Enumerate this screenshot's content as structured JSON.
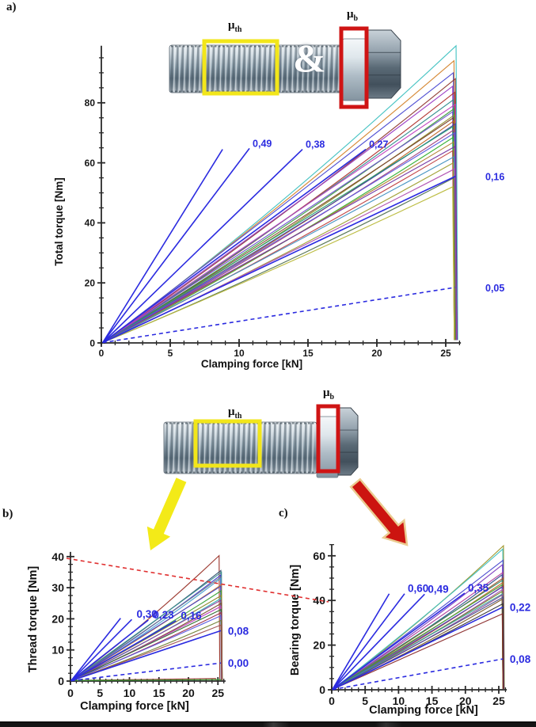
{
  "panel_labels": {
    "a": "a)",
    "b": "b)",
    "c": "c)"
  },
  "bolt_annotations": {
    "mu_symbol": "μ",
    "thread_subscript": "th",
    "bearing_subscript": "b",
    "ampersand": "&",
    "thread_box_color": "#f2e61a",
    "bearing_box_color": "#cf1414"
  },
  "annotations": {
    "dashed_line_color": "#e03030",
    "yellow_arrow_color": "#f3ea18",
    "red_arrow_color": "#cc1410",
    "red_arrow_outline": "#eacb90",
    "reference_line_color": "#2b2be0"
  },
  "chart_data": [
    {
      "id": "a",
      "type": "line",
      "xlabel": "Clamping force [kN]",
      "ylabel": "Total torque [Nm]",
      "xlim": [
        0,
        26
      ],
      "ylim": [
        0,
        99
      ],
      "xticks": [
        0,
        5,
        10,
        15,
        20,
        25
      ],
      "yticks": [
        0,
        20,
        40,
        60,
        80
      ],
      "x_minor_step": 1,
      "y_minor_step": 5,
      "grid": false,
      "legend": false,
      "reference_lines": [
        {
          "mu_label": "",
          "end": [
            8.8,
            64.5
          ],
          "dashed": false
        },
        {
          "mu_label": "0,49",
          "end": [
            10.75,
            64.8
          ],
          "dashed": false
        },
        {
          "mu_label": "0,38",
          "end": [
            14.6,
            64.5
          ],
          "dashed": false
        },
        {
          "mu_label": "0,27",
          "end": [
            19.2,
            64.5
          ],
          "dashed": false
        },
        {
          "mu_label": "0,16",
          "end": [
            25.7,
            55.5
          ],
          "dashed": false
        },
        {
          "mu_label": "0,05",
          "end": [
            25.7,
            18.5
          ],
          "dashed": true
        }
      ],
      "curves": [
        {
          "color": "#3fc1c1",
          "peak": 99,
          "x_end": 25.75,
          "drop_to": 1
        },
        {
          "color": "#d4842c",
          "peak": 94,
          "x_end": 25.6,
          "drop_to": 1
        },
        {
          "color": "#4a4ad2",
          "peak": 90,
          "x_end": 25.55,
          "drop_to": 1
        },
        {
          "color": "#8f3a30",
          "peak": 88,
          "x_end": 25.7,
          "drop_to": 1
        },
        {
          "color": "#9a3bc4",
          "peak": 85.5,
          "x_end": 25.5,
          "drop_to": 1
        },
        {
          "color": "#b1332e",
          "peak": 83.5,
          "x_end": 25.65,
          "drop_to": 1
        },
        {
          "color": "#2e8b8b",
          "peak": 81,
          "x_end": 25.55,
          "drop_to": 1
        },
        {
          "color": "#bf3fbf",
          "peak": 79.5,
          "x_end": 25.7,
          "drop_to": 1
        },
        {
          "color": "#3a9e3a",
          "peak": 78,
          "x_end": 25.6,
          "drop_to": 1
        },
        {
          "color": "#6a4fd0",
          "peak": 77,
          "x_end": 25.5,
          "drop_to": 1
        },
        {
          "color": "#8a8a28",
          "peak": 76,
          "x_end": 25.65,
          "drop_to": 1
        },
        {
          "color": "#7a4028",
          "peak": 75,
          "x_end": 25.55,
          "drop_to": 1
        },
        {
          "color": "#c06020",
          "peak": 74,
          "x_end": 25.6,
          "drop_to": 1
        },
        {
          "color": "#4040a0",
          "peak": 73,
          "x_end": 25.7,
          "drop_to": 1
        },
        {
          "color": "#20a070",
          "peak": 72,
          "x_end": 25.5,
          "drop_to": 1
        },
        {
          "color": "#a04080",
          "peak": 71,
          "x_end": 25.6,
          "drop_to": 1
        },
        {
          "color": "#5858e0",
          "peak": 70,
          "x_end": 25.65,
          "drop_to": 1
        },
        {
          "color": "#30b030",
          "peak": 68.5,
          "x_end": 25.55,
          "drop_to": 1
        },
        {
          "color": "#b08030",
          "peak": 67,
          "x_end": 25.6,
          "drop_to": 1
        },
        {
          "color": "#7030a0",
          "peak": 65.5,
          "x_end": 25.7,
          "drop_to": 1
        },
        {
          "color": "#c04040",
          "peak": 64,
          "x_end": 25.5,
          "drop_to": 1
        },
        {
          "color": "#4090c0",
          "peak": 62,
          "x_end": 25.6,
          "drop_to": 1
        },
        {
          "color": "#9f9f30",
          "peak": 60,
          "x_end": 25.55,
          "drop_to": 1
        },
        {
          "color": "#b050b0",
          "peak": 58,
          "x_end": 25.65,
          "drop_to": 1
        },
        {
          "color": "#507050",
          "peak": 55,
          "x_end": 25.6,
          "drop_to": 1
        },
        {
          "color": "#b9b93a",
          "peak": 52,
          "x_end": 25.5,
          "drop_to": 1
        }
      ]
    },
    {
      "id": "b",
      "type": "line",
      "xlabel": "Clamping force [kN]",
      "ylabel": "Thread torque [Nm]",
      "xlim": [
        0,
        26
      ],
      "ylim": [
        0,
        41.5
      ],
      "xticks": [
        0,
        5,
        10,
        15,
        20,
        25
      ],
      "yticks": [
        0,
        10,
        20,
        30,
        40
      ],
      "x_minor_step": 1,
      "y_minor_step": 2.5,
      "grid": false,
      "legend": false,
      "reference_lines": [
        {
          "mu_label": "",
          "end": [
            8.5,
            20.2
          ],
          "dashed": false
        },
        {
          "mu_label": "0,30",
          "end": [
            10.4,
            19.8
          ],
          "dashed": false
        },
        {
          "mu_label": "0,23",
          "end": [
            13.2,
            19.6
          ],
          "dashed": false
        },
        {
          "mu_label": "0,16",
          "end": [
            17.9,
            19.4
          ],
          "dashed": false
        },
        {
          "mu_label": "0,08",
          "end": [
            25.5,
            16.2
          ],
          "dashed": false
        },
        {
          "mu_label": "0,00",
          "end": [
            25.5,
            5.8
          ],
          "dashed": true
        }
      ],
      "curves": [
        {
          "color": "#993128",
          "peak": 40.3,
          "x_end": 25.2,
          "drop_to": 0.3
        },
        {
          "color": "#2f4f6f",
          "peak": 35.5,
          "x_end": 25.5,
          "drop_to": 0.3
        },
        {
          "color": "#3a8f8f",
          "peak": 35,
          "x_end": 25.6,
          "drop_to": 0.3
        },
        {
          "color": "#3f3fd0",
          "peak": 34,
          "x_end": 25.45,
          "drop_to": 0.3
        },
        {
          "color": "#6a7a8a",
          "peak": 33.5,
          "x_end": 25.55,
          "drop_to": 0.3
        },
        {
          "color": "#4aa0d0",
          "peak": 33,
          "x_end": 25.5,
          "drop_to": 0.3
        },
        {
          "color": "#cc7a2a",
          "peak": 31,
          "x_end": 25.6,
          "drop_to": 0.3
        },
        {
          "color": "#4444cc",
          "peak": 30.5,
          "x_end": 25.5,
          "drop_to": 0.3
        },
        {
          "color": "#38a038",
          "peak": 29,
          "x_end": 25.55,
          "drop_to": 0.3
        },
        {
          "color": "#8a8a28",
          "peak": 27.5,
          "x_end": 25.6,
          "drop_to": 0.3
        },
        {
          "color": "#30b0b0",
          "peak": 26.5,
          "x_end": 25.45,
          "drop_to": 0.3
        },
        {
          "color": "#8a3a9a",
          "peak": 26,
          "x_end": 25.5,
          "drop_to": 0.3
        },
        {
          "color": "#7a4a2a",
          "peak": 25,
          "x_end": 25.6,
          "drop_to": 0.3
        },
        {
          "color": "#c040c0",
          "peak": 24,
          "x_end": 25.5,
          "drop_to": 0.3
        },
        {
          "color": "#2a6a2a",
          "peak": 23,
          "x_end": 25.55,
          "drop_to": 0.3
        },
        {
          "color": "#9a2a4a",
          "peak": 22,
          "x_end": 25.6,
          "drop_to": 0.3
        },
        {
          "color": "#5a5ae0",
          "peak": 21,
          "x_end": 25.5,
          "drop_to": 0.3
        },
        {
          "color": "#708030",
          "peak": 19.5,
          "x_end": 25.55,
          "drop_to": 0.3
        },
        {
          "color": "#a05050",
          "peak": 18,
          "x_end": 25.5,
          "drop_to": 0.3
        },
        {
          "color": "#a03030",
          "peak": 0.8,
          "x_end": 24.6,
          "drop_to": 0.2
        },
        {
          "color": "#30a030",
          "peak": 0.5,
          "x_end": 25.4,
          "drop_to": 0.2
        }
      ]
    },
    {
      "id": "c",
      "type": "line",
      "xlabel": "Clamping force [kN]",
      "ylabel": "Bearing torque [Nm]",
      "xlim": [
        0,
        26
      ],
      "ylim": [
        0,
        65
      ],
      "xticks": [
        0,
        5,
        10,
        15,
        20,
        25
      ],
      "yticks": [
        0,
        20,
        40,
        60
      ],
      "x_minor_step": 1,
      "y_minor_step": 5,
      "grid": false,
      "legend": false,
      "reference_lines": [
        {
          "mu_label": "",
          "end": [
            8.6,
            43
          ],
          "dashed": false
        },
        {
          "mu_label": "0,60",
          "end": [
            10.9,
            43
          ],
          "dashed": false
        },
        {
          "mu_label": "0,49",
          "end": [
            13.9,
            42.8
          ],
          "dashed": false
        },
        {
          "mu_label": "0,35",
          "end": [
            19.9,
            43.3
          ],
          "dashed": false
        },
        {
          "mu_label": "0,22",
          "end": [
            25.6,
            37
          ],
          "dashed": false
        },
        {
          "mu_label": "0,08",
          "end": [
            25.6,
            13.8
          ],
          "dashed": true
        }
      ],
      "curves": [
        {
          "color": "#9a8f20",
          "peak": 64.5,
          "x_end": 25.7,
          "drop_to": 0.4
        },
        {
          "color": "#3fc1c1",
          "peak": 63,
          "x_end": 25.6,
          "drop_to": 0.4
        },
        {
          "color": "#4747cf",
          "peak": 58,
          "x_end": 25.65,
          "drop_to": 0.4
        },
        {
          "color": "#7a3ac0",
          "peak": 56,
          "x_end": 25.55,
          "drop_to": 0.4
        },
        {
          "color": "#b03a9a",
          "peak": 52.5,
          "x_end": 25.6,
          "drop_to": 0.4
        },
        {
          "color": "#2f4f8f",
          "peak": 51.5,
          "x_end": 25.5,
          "drop_to": 0.4
        },
        {
          "color": "#a4522a",
          "peak": 50,
          "x_end": 25.65,
          "drop_to": 0.4
        },
        {
          "color": "#2e8b6b",
          "peak": 49,
          "x_end": 25.55,
          "drop_to": 0.4
        },
        {
          "color": "#c06828",
          "peak": 48,
          "x_end": 25.6,
          "drop_to": 0.4
        },
        {
          "color": "#38a038",
          "peak": 47,
          "x_end": 25.5,
          "drop_to": 0.4
        },
        {
          "color": "#9a3030",
          "peak": 46.5,
          "x_end": 25.65,
          "drop_to": 0.4
        },
        {
          "color": "#5050d0",
          "peak": 46,
          "x_end": 25.55,
          "drop_to": 0.4
        },
        {
          "color": "#b050b0",
          "peak": 45,
          "x_end": 25.6,
          "drop_to": 0.4
        },
        {
          "color": "#6a8a28",
          "peak": 44,
          "x_end": 25.5,
          "drop_to": 0.4
        },
        {
          "color": "#3a9e9e",
          "peak": 43,
          "x_end": 25.6,
          "drop_to": 0.4
        },
        {
          "color": "#8a4a9a",
          "peak": 42.5,
          "x_end": 25.55,
          "drop_to": 0.4
        },
        {
          "color": "#4a4a8a",
          "peak": 41.5,
          "x_end": 25.65,
          "drop_to": 0.4
        },
        {
          "color": "#7a5a2a",
          "peak": 40.5,
          "x_end": 25.5,
          "drop_to": 0.4
        },
        {
          "color": "#303030",
          "peak": 38.5,
          "x_end": 25.6,
          "drop_to": 0.4
        },
        {
          "color": "#8a2a2a",
          "peak": 34,
          "x_end": 25.55,
          "drop_to": 0.4
        }
      ]
    }
  ]
}
